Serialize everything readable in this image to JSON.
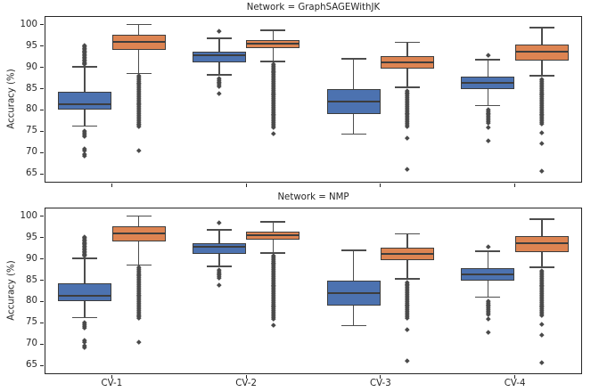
{
  "figure_title": "",
  "palette": {
    "blue_fill": "#4C72B0",
    "orange_fill": "#DD8452",
    "box_edge": "#3d3d3d",
    "median": "#3d3d3d",
    "whisker": "#4d4d4d",
    "outlier": "#4a4a4a",
    "spine": "#262626",
    "text": "#262626",
    "background": "#ffffff"
  },
  "chart_data": [
    {
      "type": "box",
      "title": "Network = GraphSAGEWithJK",
      "xlabel": "",
      "ylabel": "Accuracy (%)",
      "ylim": [
        63,
        102
      ],
      "yticks": [
        65,
        70,
        75,
        80,
        85,
        90,
        95,
        100
      ],
      "categories": [
        "CV-1",
        "CV-2",
        "CV-3",
        "CV-4"
      ],
      "show_xticklabels": false,
      "grid": false,
      "legend": "none",
      "series": [
        {
          "name": "blue",
          "color": "#4C72B0",
          "boxes": [
            {
              "category": "CV-1",
              "whislo": 76.2,
              "q1": 80.0,
              "med": 81.4,
              "q3": 84.2,
              "whishi": 90.1,
              "outliers": [
                95.2,
                94.9,
                94.6,
                94.3,
                94.0,
                93.7,
                93.4,
                93.1,
                92.8,
                92.5,
                92.2,
                91.9,
                91.6,
                91.3,
                91.0,
                90.7,
                75.1,
                74.7,
                74.3,
                73.9,
                71.0,
                70.6,
                69.7,
                69.2
              ]
            },
            {
              "category": "CV-2",
              "whislo": 88.2,
              "q1": 91.2,
              "med": 92.9,
              "q3": 93.7,
              "whishi": 96.8,
              "outliers": [
                98.5,
                87.5,
                87.1,
                86.7,
                86.3,
                85.9,
                85.5,
                83.8
              ]
            },
            {
              "category": "CV-3",
              "whislo": 74.4,
              "q1": 79.0,
              "med": 82.0,
              "q3": 84.8,
              "whishi": 92.0,
              "outliers": []
            },
            {
              "category": "CV-4",
              "whislo": 81.0,
              "q1": 84.9,
              "med": 86.4,
              "q3": 87.9,
              "whishi": 91.8,
              "outliers": [
                92.9,
                80.2,
                79.8,
                79.4,
                79.0,
                78.6,
                78.2,
                77.8,
                77.4,
                77.0,
                75.9,
                72.9
              ]
            }
          ]
        },
        {
          "name": "orange",
          "color": "#DD8452",
          "boxes": [
            {
              "category": "CV-1",
              "whislo": 88.5,
              "q1": 94.0,
              "med": 95.9,
              "q3": 97.7,
              "whishi": 100.0,
              "outliers": [
                88.1,
                87.7,
                87.3,
                86.9,
                86.5,
                86.1,
                85.7,
                85.3,
                84.9,
                84.5,
                84.1,
                83.7,
                83.3,
                82.9,
                82.5,
                82.1,
                81.7,
                81.3,
                80.9,
                80.5,
                80.1,
                79.7,
                79.3,
                78.9,
                78.5,
                78.1,
                77.7,
                77.3,
                76.9,
                76.5,
                76.1,
                70.6
              ]
            },
            {
              "category": "CV-2",
              "whislo": 91.4,
              "q1": 94.4,
              "med": 95.6,
              "q3": 96.4,
              "whishi": 98.7,
              "outliers": [
                90.8,
                90.4,
                90.0,
                89.6,
                89.2,
                88.8,
                88.4,
                88.0,
                87.6,
                87.2,
                86.8,
                86.4,
                86.0,
                85.6,
                85.2,
                84.8,
                84.4,
                84.0,
                83.6,
                83.2,
                82.8,
                82.4,
                82.0,
                81.6,
                81.2,
                80.8,
                80.4,
                80.0,
                79.6,
                79.2,
                78.8,
                78.4,
                78.0,
                77.6,
                77.2,
                76.8,
                76.4,
                76.0,
                74.6
              ]
            },
            {
              "category": "CV-3",
              "whislo": 85.3,
              "q1": 89.6,
              "med": 91.2,
              "q3": 92.7,
              "whishi": 95.8,
              "outliers": [
                84.6,
                84.2,
                83.8,
                83.4,
                83.0,
                82.6,
                82.2,
                81.8,
                81.4,
                81.0,
                80.6,
                80.2,
                79.8,
                79.4,
                79.0,
                78.6,
                78.2,
                77.8,
                77.4,
                77.0,
                76.6,
                76.2,
                73.4,
                66.2
              ]
            },
            {
              "category": "CV-4",
              "whislo": 88.0,
              "q1": 91.6,
              "med": 93.6,
              "q3": 95.3,
              "whishi": 99.3,
              "outliers": [
                87.2,
                86.8,
                86.4,
                86.0,
                85.6,
                85.2,
                84.8,
                84.4,
                84.0,
                83.6,
                83.2,
                82.8,
                82.4,
                82.0,
                81.6,
                81.2,
                80.8,
                80.4,
                80.0,
                79.6,
                79.2,
                78.8,
                78.4,
                78.0,
                77.6,
                77.2,
                76.8,
                74.7,
                72.3,
                65.7
              ]
            }
          ]
        }
      ]
    },
    {
      "type": "box",
      "title": "Network = NMP",
      "xlabel": "",
      "ylabel": "Accuracy (%)",
      "ylim": [
        63,
        102
      ],
      "yticks": [
        65,
        70,
        75,
        80,
        85,
        90,
        95,
        100
      ],
      "categories": [
        "CV-1",
        "CV-2",
        "CV-3",
        "CV-4"
      ],
      "show_xticklabels": true,
      "grid": false,
      "legend": "none",
      "series": [
        {
          "name": "blue",
          "color": "#4C72B0",
          "boxes": [
            {
              "category": "CV-1",
              "whislo": 76.2,
              "q1": 80.0,
              "med": 81.4,
              "q3": 84.2,
              "whishi": 90.1,
              "outliers": [
                95.2,
                94.9,
                94.6,
                94.3,
                94.0,
                93.7,
                93.4,
                93.1,
                92.8,
                92.5,
                92.2,
                91.9,
                91.6,
                91.3,
                91.0,
                90.7,
                75.1,
                74.7,
                74.3,
                73.9,
                71.0,
                70.6,
                69.7,
                69.2
              ]
            },
            {
              "category": "CV-2",
              "whislo": 88.2,
              "q1": 91.2,
              "med": 92.9,
              "q3": 93.7,
              "whishi": 96.8,
              "outliers": [
                98.5,
                87.5,
                87.1,
                86.7,
                86.3,
                85.9,
                85.5,
                83.8
              ]
            },
            {
              "category": "CV-3",
              "whislo": 74.4,
              "q1": 79.0,
              "med": 82.0,
              "q3": 84.8,
              "whishi": 92.0,
              "outliers": []
            },
            {
              "category": "CV-4",
              "whislo": 81.0,
              "q1": 84.9,
              "med": 86.4,
              "q3": 87.9,
              "whishi": 91.8,
              "outliers": [
                92.9,
                80.2,
                79.8,
                79.4,
                79.0,
                78.6,
                78.2,
                77.8,
                77.4,
                77.0,
                75.9,
                72.9
              ]
            }
          ]
        },
        {
          "name": "orange",
          "color": "#DD8452",
          "boxes": [
            {
              "category": "CV-1",
              "whislo": 88.5,
              "q1": 94.0,
              "med": 95.9,
              "q3": 97.7,
              "whishi": 100.0,
              "outliers": [
                88.1,
                87.7,
                87.3,
                86.9,
                86.5,
                86.1,
                85.7,
                85.3,
                84.9,
                84.5,
                84.1,
                83.7,
                83.3,
                82.9,
                82.5,
                82.1,
                81.7,
                81.3,
                80.9,
                80.5,
                80.1,
                79.7,
                79.3,
                78.9,
                78.5,
                78.1,
                77.7,
                77.3,
                76.9,
                76.5,
                76.1,
                70.6
              ]
            },
            {
              "category": "CV-2",
              "whislo": 91.4,
              "q1": 94.4,
              "med": 95.6,
              "q3": 96.4,
              "whishi": 98.7,
              "outliers": [
                90.8,
                90.4,
                90.0,
                89.6,
                89.2,
                88.8,
                88.4,
                88.0,
                87.6,
                87.2,
                86.8,
                86.4,
                86.0,
                85.6,
                85.2,
                84.8,
                84.4,
                84.0,
                83.6,
                83.2,
                82.8,
                82.4,
                82.0,
                81.6,
                81.2,
                80.8,
                80.4,
                80.0,
                79.6,
                79.2,
                78.8,
                78.4,
                78.0,
                77.6,
                77.2,
                76.8,
                76.4,
                76.0,
                74.6
              ]
            },
            {
              "category": "CV-3",
              "whislo": 85.3,
              "q1": 89.6,
              "med": 91.2,
              "q3": 92.7,
              "whishi": 95.8,
              "outliers": [
                84.6,
                84.2,
                83.8,
                83.4,
                83.0,
                82.6,
                82.2,
                81.8,
                81.4,
                81.0,
                80.6,
                80.2,
                79.8,
                79.4,
                79.0,
                78.6,
                78.2,
                77.8,
                77.4,
                77.0,
                76.6,
                76.2,
                73.4,
                66.2
              ]
            },
            {
              "category": "CV-4",
              "whislo": 88.0,
              "q1": 91.6,
              "med": 93.6,
              "q3": 95.3,
              "whishi": 99.3,
              "outliers": [
                87.2,
                86.8,
                86.4,
                86.0,
                85.6,
                85.2,
                84.8,
                84.4,
                84.0,
                83.6,
                83.2,
                82.8,
                82.4,
                82.0,
                81.6,
                81.2,
                80.8,
                80.4,
                80.0,
                79.6,
                79.2,
                78.8,
                78.4,
                78.0,
                77.6,
                77.2,
                76.8,
                74.7,
                72.3,
                65.7
              ]
            }
          ]
        }
      ]
    }
  ]
}
